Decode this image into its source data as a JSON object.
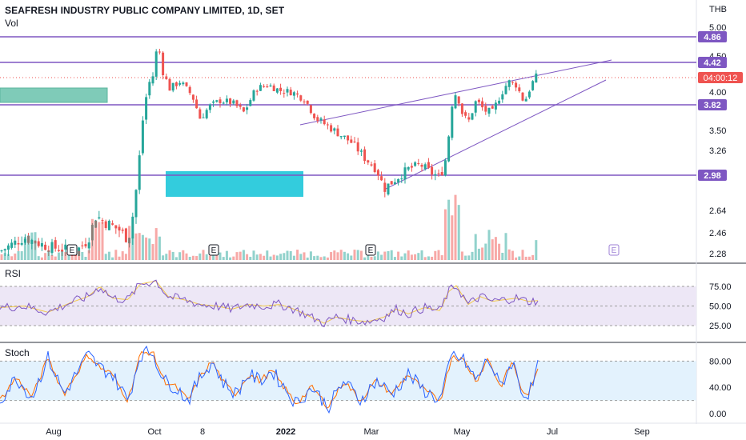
{
  "header": {
    "title": "SEAFRESH INDUSTRY PUBLIC COMPANY LIMITED, 1D, SET",
    "volume_label": "Vol",
    "currency": "THB"
  },
  "panes": {
    "rsi_label": "RSI",
    "stoch_label": "Stoch"
  },
  "chart_data": [
    {
      "type": "candlestick",
      "title": "SEAFRESH INDUSTRY PUBLIC COMPANY LIMITED, 1D, SET",
      "y_ticks": [
        "5.00",
        "4.50",
        "4.00",
        "3.50",
        "3.26",
        "2.64",
        "2.46",
        "2.28"
      ],
      "x_ticks": [
        "Aug",
        "Oct",
        "8",
        "2022",
        "Mar",
        "May",
        "Jul",
        "Sep"
      ],
      "horizontal_levels": [
        {
          "value": 4.86,
          "label": "4.86"
        },
        {
          "value": 4.42,
          "label": "4.42"
        },
        {
          "value": 3.82,
          "label": "3.82"
        },
        {
          "value": 2.98,
          "label": "2.98"
        }
      ],
      "last_price_label": "04:00:12",
      "earnings_markers": [
        "E",
        "E",
        "E",
        "E"
      ],
      "price_path": [
        [
          0,
          2.3
        ],
        [
          30,
          2.42
        ],
        [
          60,
          2.34
        ],
        [
          95,
          2.3
        ],
        [
          110,
          2.4
        ],
        [
          120,
          2.6
        ],
        [
          130,
          2.55
        ],
        [
          150,
          2.48
        ],
        [
          160,
          2.4
        ],
        [
          165,
          2.55
        ],
        [
          172,
          2.95
        ],
        [
          178,
          3.6
        ],
        [
          185,
          4.1
        ],
        [
          192,
          4.25
        ],
        [
          197,
          4.75
        ],
        [
          203,
          4.3
        ],
        [
          212,
          4.05
        ],
        [
          225,
          4.15
        ],
        [
          240,
          3.95
        ],
        [
          250,
          3.65
        ],
        [
          262,
          3.8
        ],
        [
          275,
          3.88
        ],
        [
          290,
          3.85
        ],
        [
          305,
          3.72
        ],
        [
          320,
          4.05
        ],
        [
          335,
          4.1
        ],
        [
          350,
          4.02
        ],
        [
          365,
          4.0
        ],
        [
          380,
          3.9
        ],
        [
          395,
          3.65
        ],
        [
          410,
          3.55
        ],
        [
          425,
          3.45
        ],
        [
          440,
          3.35
        ],
        [
          455,
          3.18
        ],
        [
          470,
          3.05
        ],
        [
          480,
          2.85
        ],
        [
          495,
          2.95
        ],
        [
          510,
          3.05
        ],
        [
          525,
          3.1
        ],
        [
          540,
          3.0
        ],
        [
          550,
          2.96
        ],
        [
          558,
          3.2
        ],
        [
          565,
          3.85
        ],
        [
          570,
          4.0
        ],
        [
          578,
          3.7
        ],
        [
          585,
          3.6
        ],
        [
          595,
          3.88
        ],
        [
          605,
          3.75
        ],
        [
          615,
          3.72
        ],
        [
          625,
          3.95
        ],
        [
          635,
          4.15
        ],
        [
          645,
          4.1
        ],
        [
          655,
          3.85
        ],
        [
          662,
          4.05
        ],
        [
          668,
          4.2
        ],
        [
          674,
          4.25
        ]
      ],
      "volume_bar_count": 160
    },
    {
      "type": "line",
      "title": "RSI",
      "y_ticks": [
        "75.00",
        "50.00",
        "25.00"
      ],
      "series_path": [
        [
          0,
          48
        ],
        [
          30,
          50
        ],
        [
          60,
          42
        ],
        [
          90,
          55
        ],
        [
          110,
          62
        ],
        [
          125,
          75
        ],
        [
          140,
          60
        ],
        [
          160,
          58
        ],
        [
          175,
          78
        ],
        [
          195,
          82
        ],
        [
          210,
          62
        ],
        [
          230,
          58
        ],
        [
          250,
          52
        ],
        [
          270,
          50
        ],
        [
          290,
          46
        ],
        [
          310,
          52
        ],
        [
          330,
          50
        ],
        [
          350,
          52
        ],
        [
          370,
          45
        ],
        [
          390,
          35
        ],
        [
          405,
          28
        ],
        [
          420,
          36
        ],
        [
          440,
          32
        ],
        [
          460,
          30
        ],
        [
          480,
          36
        ],
        [
          495,
          46
        ],
        [
          510,
          40
        ],
        [
          530,
          48
        ],
        [
          550,
          44
        ],
        [
          560,
          68
        ],
        [
          570,
          76
        ],
        [
          585,
          52
        ],
        [
          600,
          62
        ],
        [
          615,
          56
        ],
        [
          630,
          58
        ],
        [
          645,
          60
        ],
        [
          660,
          56
        ],
        [
          674,
          57
        ]
      ]
    },
    {
      "type": "line",
      "title": "Stoch",
      "y_ticks": [
        "80.00",
        "40.00",
        "0.00"
      ],
      "series_path": [
        [
          0,
          20
        ],
        [
          20,
          55
        ],
        [
          40,
          25
        ],
        [
          60,
          85
        ],
        [
          80,
          30
        ],
        [
          95,
          60
        ],
        [
          110,
          90
        ],
        [
          125,
          70
        ],
        [
          140,
          60
        ],
        [
          160,
          20
        ],
        [
          175,
          90
        ],
        [
          190,
          95
        ],
        [
          205,
          50
        ],
        [
          220,
          40
        ],
        [
          235,
          20
        ],
        [
          250,
          55
        ],
        [
          265,
          80
        ],
        [
          280,
          45
        ],
        [
          295,
          30
        ],
        [
          310,
          60
        ],
        [
          325,
          50
        ],
        [
          340,
          65
        ],
        [
          355,
          40
        ],
        [
          370,
          15
        ],
        [
          390,
          40
        ],
        [
          410,
          10
        ],
        [
          430,
          50
        ],
        [
          450,
          20
        ],
        [
          470,
          50
        ],
        [
          490,
          30
        ],
        [
          510,
          60
        ],
        [
          530,
          35
        ],
        [
          550,
          20
        ],
        [
          565,
          90
        ],
        [
          580,
          80
        ],
        [
          595,
          50
        ],
        [
          610,
          85
        ],
        [
          625,
          40
        ],
        [
          640,
          80
        ],
        [
          655,
          25
        ],
        [
          665,
          40
        ],
        [
          674,
          80
        ]
      ]
    }
  ]
}
